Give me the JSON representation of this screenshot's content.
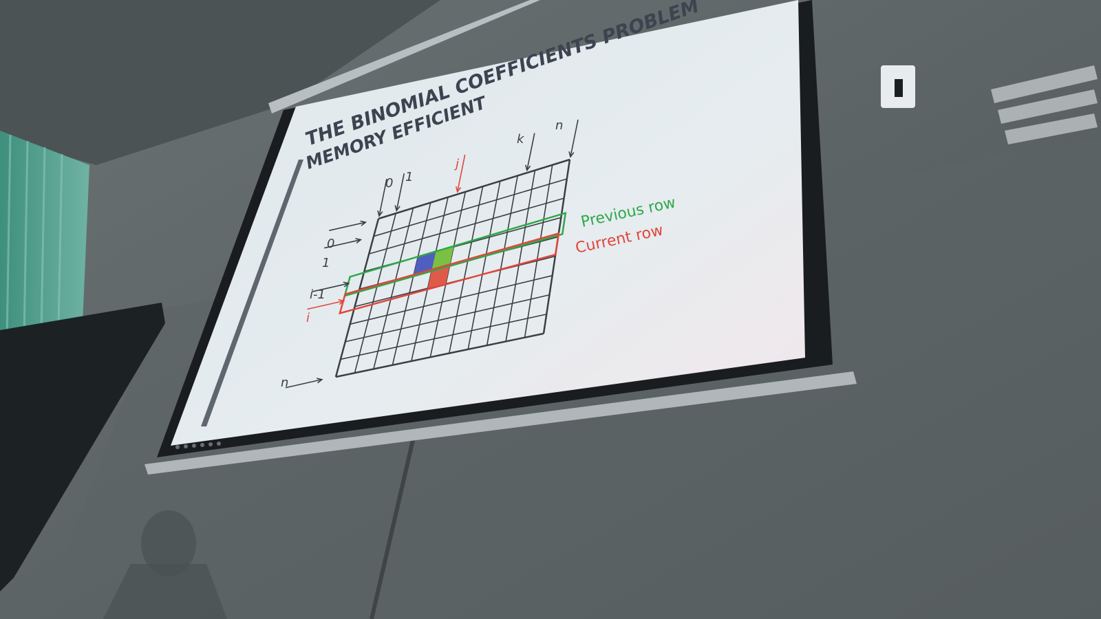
{
  "slide": {
    "title": "THE BINOMIAL COEFFICIENTS PROBLEM",
    "subtitle": "MEMORY EFFICIENT",
    "legend": {
      "previous_row": "Previous row",
      "current_row": "Current row"
    },
    "grid": {
      "col_labels": {
        "c0": "0",
        "c1": "1",
        "cj": "j",
        "ck": "k",
        "cn": "n"
      },
      "row_labels": {
        "r0": "0",
        "r1": "1",
        "ri1": "i-1",
        "ri": "i",
        "rn": "n"
      }
    },
    "colors": {
      "previous_row": "#2fa84a",
      "current_row": "#e0463c",
      "cell_blue": "#4f5fc0",
      "cell_green": "#7ac043",
      "cell_red": "#e05a4a",
      "grid_line": "#3a3f44",
      "title_text": "#3c4450"
    }
  }
}
